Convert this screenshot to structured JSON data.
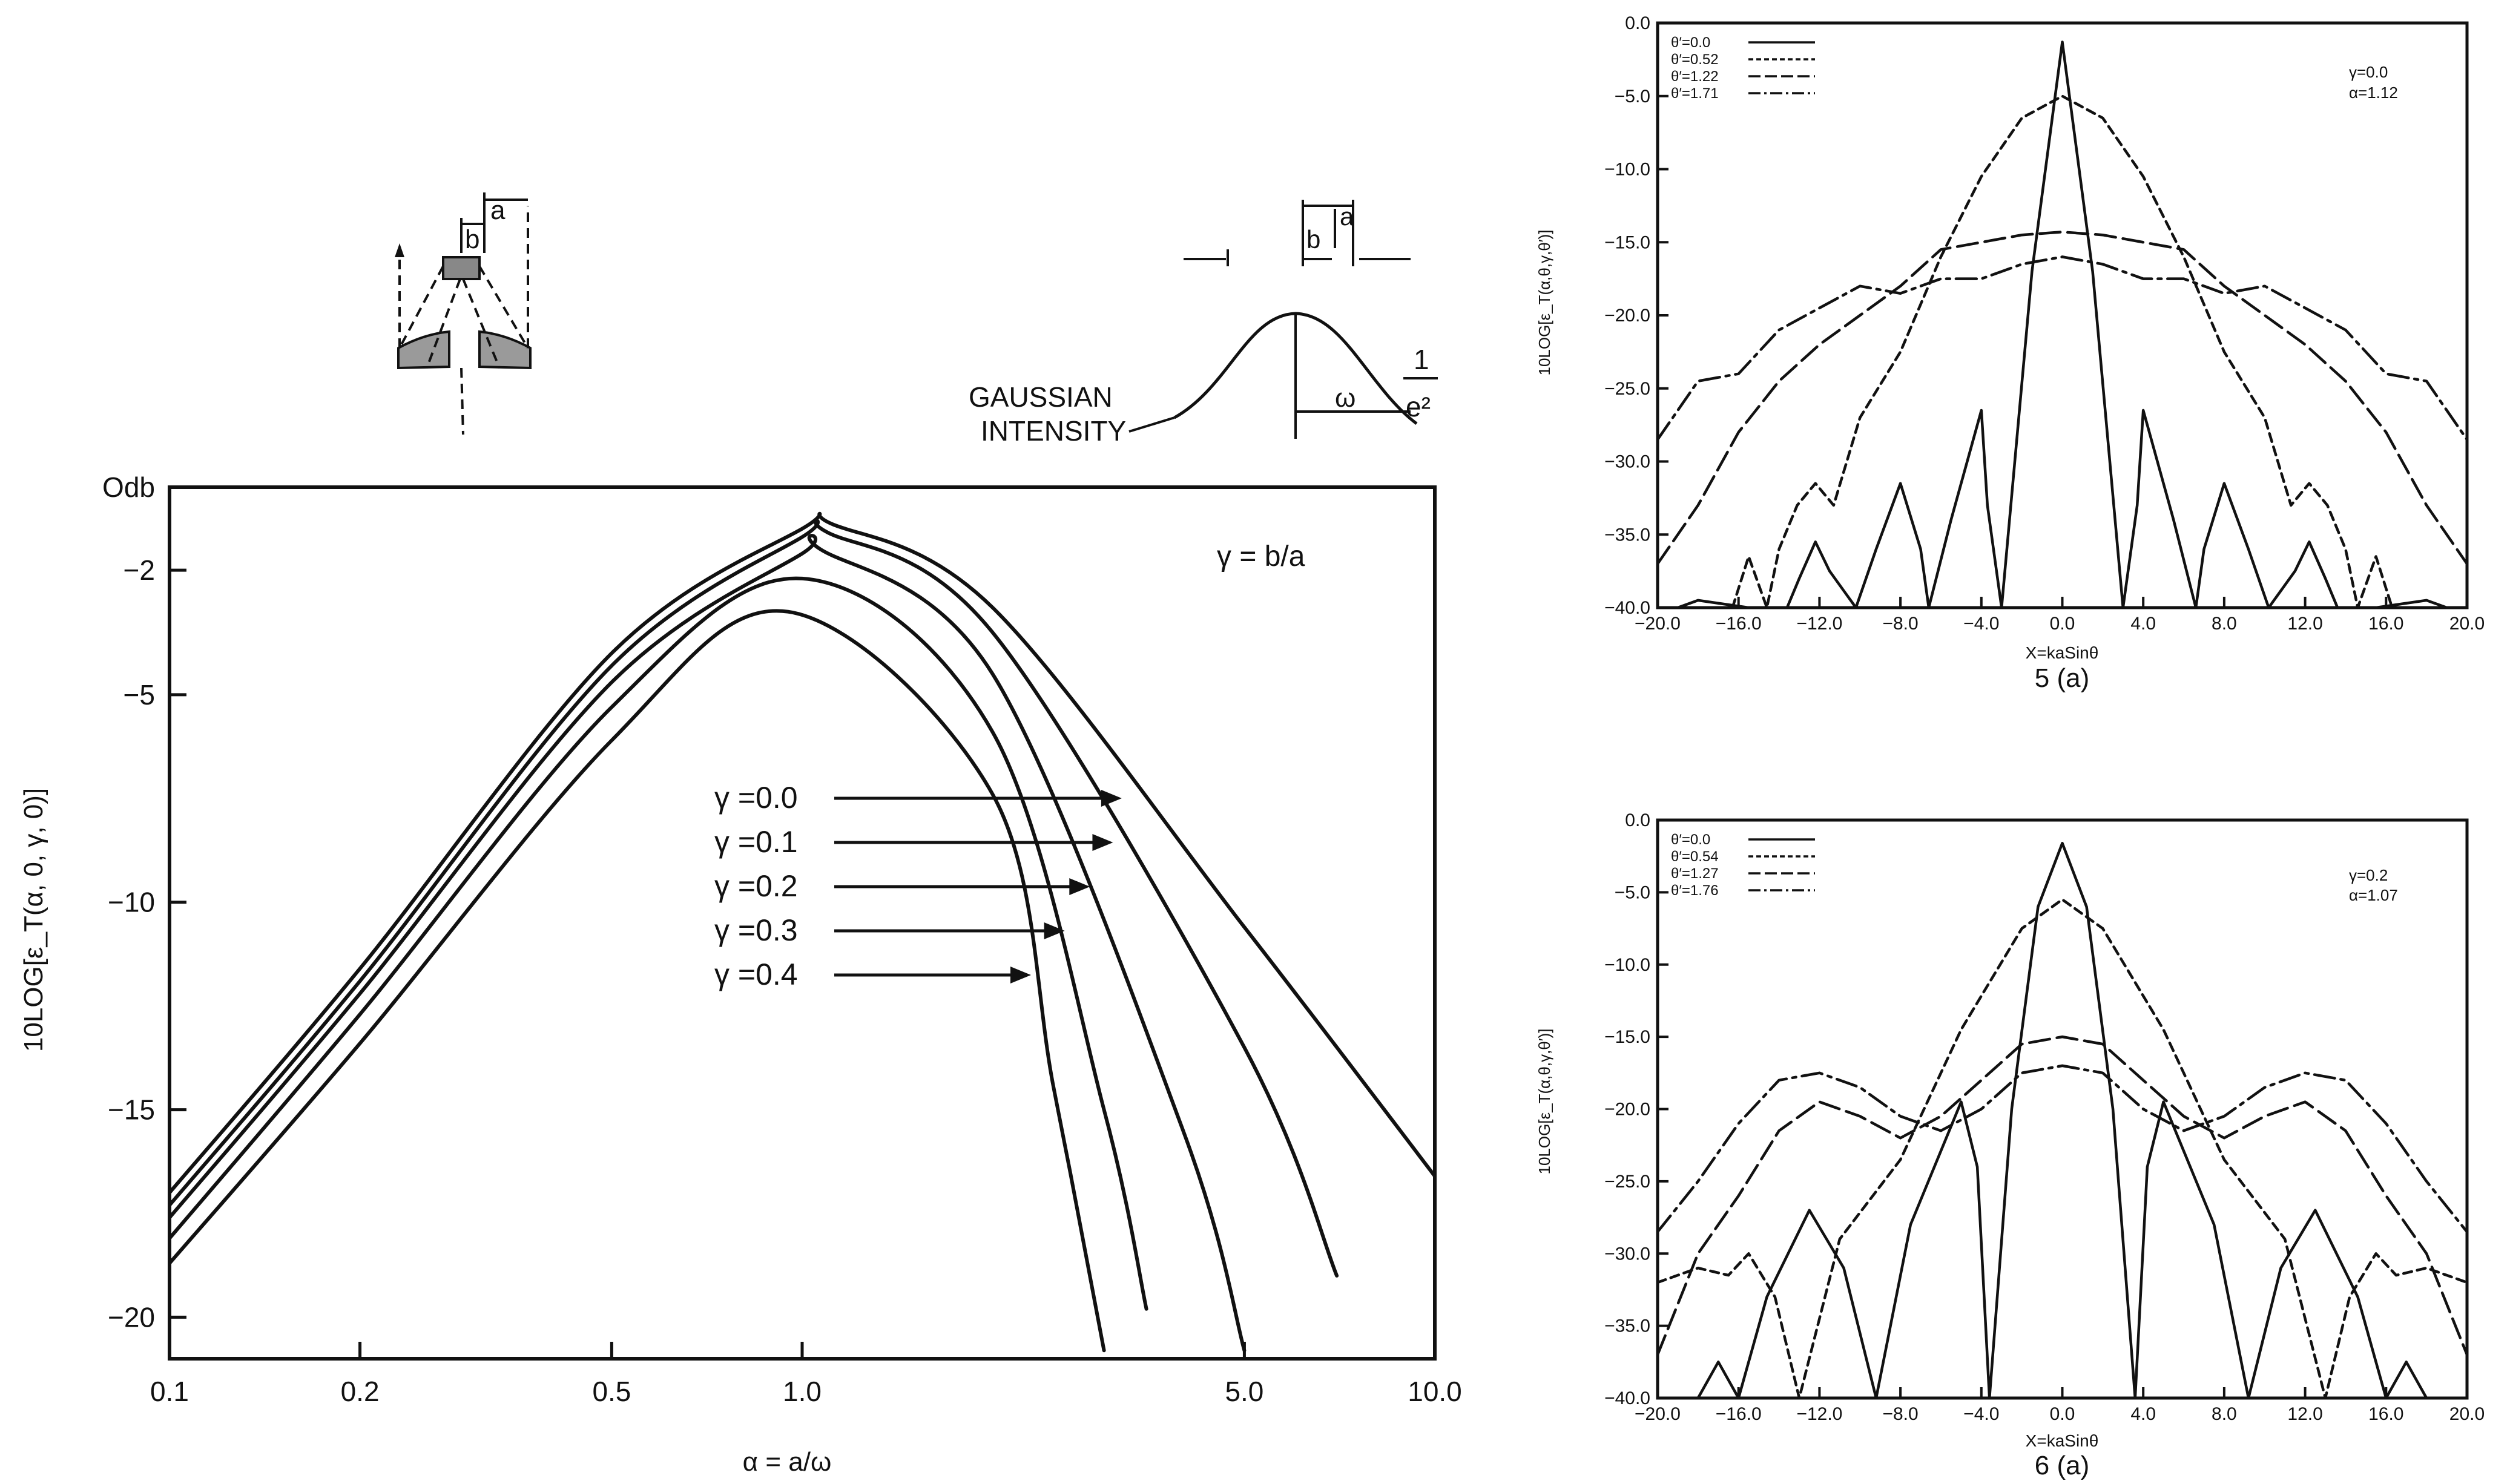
{
  "chart_data": [
    {
      "type": "line",
      "id": "main",
      "xscale": "log",
      "xlim": [
        0.1,
        10.0
      ],
      "ylim": [
        -21,
        0
      ],
      "xlabel": "α = a/ω",
      "ylabel": "10LOG[ε_T(α, 0, γ, 0)]",
      "x_ticks": [
        0.1,
        0.2,
        0.5,
        1.0,
        5.0,
        10.0
      ],
      "x_tick_labels": [
        "0.1",
        "0.2",
        "0.5",
        "1.0",
        "5.0",
        "10.0"
      ],
      "y_ticks": [
        0,
        -2,
        -5,
        -10,
        -15,
        -20
      ],
      "y_tick_labels": [
        "Odb",
        "−2",
        "−5",
        "−10",
        "−15",
        "−20"
      ],
      "annotation": "γ = b/a",
      "series": [
        {
          "name": "γ =0.0",
          "x": [
            0.1,
            0.2,
            0.5,
            1.0,
            1.12,
            2.0,
            5.0,
            10.0
          ],
          "y": [
            -17.0,
            -11.6,
            -4.0,
            -1.0,
            -0.9,
            -2.9,
            -10.6,
            -16.6
          ]
        },
        {
          "name": "γ =0.1",
          "x": [
            0.1,
            0.2,
            0.5,
            1.0,
            1.1,
            2.0,
            5.0,
            7.0
          ],
          "y": [
            -17.3,
            -11.9,
            -4.3,
            -1.2,
            -1.1,
            -3.5,
            -13.5,
            -19.0
          ]
        },
        {
          "name": "γ =0.2",
          "x": [
            0.1,
            0.2,
            0.5,
            1.0,
            1.07,
            2.0,
            4.0,
            5.0
          ],
          "y": [
            -17.6,
            -12.2,
            -4.7,
            -1.6,
            -1.5,
            -4.5,
            -15.5,
            -20.8
          ]
        },
        {
          "name": "γ =0.3",
          "x": [
            0.1,
            0.2,
            0.5,
            1.0,
            2.0,
            3.0,
            3.5
          ],
          "y": [
            -18.1,
            -12.7,
            -5.3,
            -2.2,
            -5.9,
            -15.0,
            -19.8
          ]
        },
        {
          "name": "γ =0.4",
          "x": [
            0.1,
            0.2,
            0.5,
            0.95,
            2.0,
            2.5,
            3.0
          ],
          "y": [
            -18.7,
            -13.4,
            -6.1,
            -3.0,
            -7.4,
            -14.5,
            -20.8
          ]
        }
      ],
      "inset_left": {
        "labels": [
          "a",
          "b"
        ]
      },
      "inset_right": {
        "text_lines": [
          "GAUSSIAN",
          "INTENSITY"
        ],
        "labels": [
          "a",
          "b",
          "ω"
        ],
        "fraction_num": "1",
        "fraction_den": "e²"
      }
    },
    {
      "type": "line",
      "id": "fig5a",
      "xlim": [
        -20,
        20
      ],
      "ylim": [
        -40,
        0
      ],
      "xlabel": "X=kaSinθ",
      "ylabel": "10LOG[ε_T(α,θ,γ,θ′)]",
      "caption": "5 (a)",
      "x_ticks": [
        -20,
        -16,
        -12,
        -8,
        -4,
        0,
        4,
        8,
        12,
        16,
        20
      ],
      "x_tick_labels": [
        "−20.0",
        "−16.0",
        "−12.0",
        "−8.0",
        "−4.0",
        "0.0",
        "4.0",
        "8.0",
        "12.0",
        "16.0",
        "20.0"
      ],
      "y_ticks": [
        0,
        -5,
        -10,
        -15,
        -20,
        -25,
        -30,
        -35,
        -40
      ],
      "y_tick_labels": [
        "0.0",
        "−5.0",
        "−10.0",
        "−15.0",
        "−20.0",
        "−25.0",
        "−30.0",
        "−35.0",
        "−40.0"
      ],
      "params": [
        "γ=0.0",
        "α=1.12"
      ],
      "legend": [
        "θ′=0.0",
        "θ′=0.52",
        "θ′=1.22",
        "θ′=1.71"
      ],
      "series": [
        {
          "name": "θ′=0.0",
          "x": [
            -19,
            -18,
            -15.5,
            -13.6,
            -13,
            -12.2,
            -11.5,
            -10.2,
            -9.2,
            -8.0,
            -7.0,
            -6.6,
            -5.5,
            -4.0,
            -3.7,
            -3.0,
            -1.5,
            0,
            1.5,
            3.0,
            3.7,
            4.0,
            5.5,
            6.6,
            7.0,
            8.0,
            9.2,
            10.2,
            11.5,
            12.2,
            13,
            13.6,
            15.5,
            18,
            19
          ],
          "y": [
            -40,
            -39.5,
            -40,
            -40,
            -38,
            -35.5,
            -37.5,
            -40,
            -36,
            -31.5,
            -36,
            -40,
            -34,
            -26.5,
            -33,
            -40,
            -17,
            -1.3,
            -17,
            -40,
            -33,
            -26.5,
            -34,
            -40,
            -36,
            -31.5,
            -36,
            -40,
            -37.5,
            -35.5,
            -38,
            -40,
            -40,
            -39.5,
            -40
          ]
        },
        {
          "name": "θ′=0.52",
          "x": [
            -16.3,
            -15.5,
            -14.6,
            -14.0,
            -13.1,
            -12.2,
            -11.3,
            -10.0,
            -8.0,
            -6.0,
            -4.0,
            -2.0,
            0,
            2.0,
            4.0,
            6.0,
            8.0,
            10.0,
            11.3,
            12.2,
            13.1,
            14.0,
            14.6,
            15.5,
            16.3
          ],
          "y": [
            -40,
            -36.5,
            -40,
            -36,
            -33,
            -31.5,
            -33,
            -27,
            -22.5,
            -16,
            -10.5,
            -6.5,
            -5.0,
            -6.5,
            -10.5,
            -16,
            -22.5,
            -27,
            -33,
            -31.5,
            -33,
            -36,
            -40,
            -36.5,
            -40
          ]
        },
        {
          "name": "θ′=1.22",
          "x": [
            -20,
            -18,
            -16,
            -14,
            -12,
            -10,
            -8,
            -6,
            -4,
            -2,
            0,
            2,
            4,
            6,
            8,
            10,
            12,
            14,
            16,
            18,
            20
          ],
          "y": [
            -37,
            -33,
            -28,
            -24.5,
            -22,
            -20,
            -18,
            -15.5,
            -15,
            -14.5,
            -14.3,
            -14.5,
            -15,
            -15.5,
            -18,
            -20,
            -22,
            -24.5,
            -28,
            -33,
            -37
          ]
        },
        {
          "name": "θ′=1.71",
          "x": [
            -20,
            -18,
            -16,
            -14,
            -12,
            -10,
            -8,
            -6,
            -4,
            -2,
            0,
            2,
            4,
            6,
            8,
            10,
            12,
            14,
            16,
            18,
            20
          ],
          "y": [
            -28.5,
            -24.5,
            -24,
            -21,
            -19.5,
            -18,
            -18.5,
            -17.5,
            -17.5,
            -16.5,
            -16,
            -16.5,
            -17.5,
            -17.5,
            -18.5,
            -18,
            -19.5,
            -21,
            -24,
            -24.5,
            -28.5
          ]
        }
      ]
    },
    {
      "type": "line",
      "id": "fig6a",
      "xlim": [
        -20,
        20
      ],
      "ylim": [
        -40,
        0
      ],
      "xlabel": "X=kaSinθ",
      "ylabel": "10LOG[ε_T(α,θ,γ,θ′)]",
      "caption": "6 (a)",
      "x_ticks": [
        -20,
        -16,
        -12,
        -8,
        -4,
        0,
        4,
        8,
        12,
        16,
        20
      ],
      "x_tick_labels": [
        "−20.0",
        "−16.0",
        "−12.0",
        "−8.0",
        "−4.0",
        "0.0",
        "4.0",
        "8.0",
        "12.0",
        "16.0",
        "20.0"
      ],
      "y_ticks": [
        0,
        -5,
        -10,
        -15,
        -20,
        -25,
        -30,
        -35,
        -40
      ],
      "y_tick_labels": [
        "0.0",
        "−5.0",
        "−10.0",
        "−15.0",
        "−20.0",
        "−25.0",
        "−30.0",
        "−35.0",
        "−40.0"
      ],
      "params": [
        "γ=0.2",
        "α=1.07"
      ],
      "legend": [
        "θ′=0.0",
        "θ′=0.54",
        "θ′=1.27",
        "θ′=1.76"
      ],
      "series": [
        {
          "name": "θ′=0.0",
          "x": [
            -18,
            -17,
            -16,
            -14.6,
            -12.5,
            -10.8,
            -9.2,
            -7.5,
            -5.0,
            -4.2,
            -3.6,
            -2.5,
            -1.2,
            0,
            1.2,
            2.5,
            3.6,
            4.2,
            5.0,
            7.5,
            9.2,
            10.8,
            12.5,
            14.6,
            16,
            17,
            18
          ],
          "y": [
            -40,
            -37.5,
            -40,
            -33,
            -27,
            -31,
            -40,
            -28,
            -19.5,
            -24,
            -40,
            -20,
            -6,
            -1.6,
            -6,
            -20,
            -40,
            -24,
            -19.5,
            -28,
            -40,
            -31,
            -27,
            -33,
            -40,
            -37.5,
            -40
          ]
        },
        {
          "name": "θ′=0.54",
          "x": [
            -20,
            -18,
            -16.5,
            -15.5,
            -14.2,
            -13.0,
            -11.0,
            -8.0,
            -5.0,
            -2.0,
            0,
            2.0,
            5.0,
            8.0,
            11.0,
            13.0,
            14.2,
            15.5,
            16.5,
            18,
            20
          ],
          "y": [
            -32,
            -31,
            -31.5,
            -30,
            -33,
            -40,
            -29,
            -23.5,
            -14.5,
            -7.5,
            -5.5,
            -7.5,
            -14.5,
            -23.5,
            -29,
            -40,
            -33,
            -30,
            -31.5,
            -31,
            -32
          ]
        },
        {
          "name": "θ′=1.27",
          "x": [
            -20,
            -18,
            -16,
            -14,
            -12,
            -10,
            -8,
            -6,
            -4,
            -2,
            0,
            2,
            4,
            6,
            8,
            10,
            12,
            14,
            16,
            18,
            20
          ],
          "y": [
            -37,
            -30,
            -26,
            -21.5,
            -19.5,
            -20.5,
            -22,
            -20.5,
            -18,
            -15.5,
            -15,
            -15.5,
            -18,
            -20.5,
            -22,
            -20.5,
            -19.5,
            -21.5,
            -26,
            -30,
            -37
          ]
        },
        {
          "name": "θ′=1.76",
          "x": [
            -20,
            -18,
            -16,
            -14,
            -12,
            -10,
            -8,
            -6,
            -4,
            -2,
            0,
            2,
            4,
            6,
            8,
            10,
            12,
            14,
            16,
            18,
            20
          ],
          "y": [
            -28.5,
            -25,
            -21,
            -18,
            -17.5,
            -18.5,
            -20.5,
            -21.5,
            -20,
            -17.5,
            -17,
            -17.5,
            -20,
            -21.5,
            -20.5,
            -18.5,
            -17.5,
            -18,
            -21,
            -25,
            -28.5
          ]
        }
      ]
    }
  ],
  "colors": {
    "ink": "#111111",
    "paper": "#ffffff"
  }
}
